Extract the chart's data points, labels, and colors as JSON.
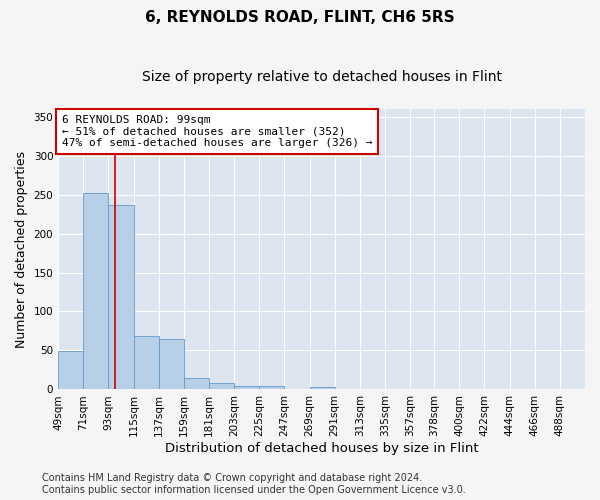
{
  "title": "6, REYNOLDS ROAD, FLINT, CH6 5RS",
  "subtitle": "Size of property relative to detached houses in Flint",
  "xlabel": "Distribution of detached houses by size in Flint",
  "ylabel": "Number of detached properties",
  "bins": [
    "49sqm",
    "71sqm",
    "93sqm",
    "115sqm",
    "137sqm",
    "159sqm",
    "181sqm",
    "203sqm",
    "225sqm",
    "247sqm",
    "269sqm",
    "291sqm",
    "313sqm",
    "335sqm",
    "357sqm",
    "378sqm",
    "400sqm",
    "422sqm",
    "444sqm",
    "466sqm",
    "488sqm"
  ],
  "bin_edges": [
    49,
    71,
    93,
    115,
    137,
    159,
    181,
    203,
    225,
    247,
    269,
    291,
    313,
    335,
    357,
    378,
    400,
    422,
    444,
    466,
    488
  ],
  "bar_values": [
    49,
    252,
    236,
    68,
    65,
    15,
    8,
    5,
    4,
    0,
    3,
    0,
    0,
    0,
    0,
    0,
    0,
    0,
    0,
    0
  ],
  "bar_color": "#b8cfe8",
  "bar_edge_color": "#6699cc",
  "property_sqm": 99,
  "vline_x": 99,
  "vline_color": "#cc0000",
  "annotation_text": "6 REYNOLDS ROAD: 99sqm\n← 51% of detached houses are smaller (352)\n47% of semi-detached houses are larger (326) →",
  "annotation_box_color": "#ffffff",
  "annotation_box_edge": "#cc0000",
  "ylim": [
    0,
    360
  ],
  "yticks": [
    0,
    50,
    100,
    150,
    200,
    250,
    300,
    350
  ],
  "bg_color": "#dde6f0",
  "fig_bg_color": "#f5f5f5",
  "grid_color": "#ffffff",
  "footer_text": "Contains HM Land Registry data © Crown copyright and database right 2024.\nContains public sector information licensed under the Open Government Licence v3.0.",
  "title_fontsize": 11,
  "subtitle_fontsize": 10,
  "ylabel_fontsize": 9,
  "xlabel_fontsize": 9.5,
  "tick_fontsize": 7.5,
  "annot_fontsize": 8,
  "footer_fontsize": 7
}
